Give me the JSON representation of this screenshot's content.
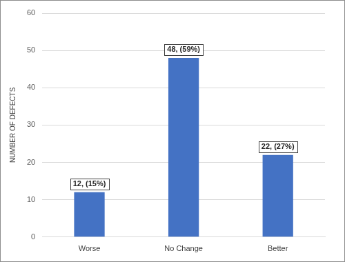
{
  "chart_data": {
    "type": "bar",
    "y_label": "NUMBER OF DEFECTS",
    "categories": [
      "Worse",
      "No Change",
      "Better"
    ],
    "values": [
      12,
      48,
      22
    ],
    "value_labels": [
      "12, (15%)",
      "48, (59%)",
      "22, (27%)"
    ],
    "data_labels": true,
    "color": "#4472c4",
    "ylim": [
      0,
      60
    ],
    "yticks": [
      0,
      10,
      20,
      30,
      40,
      50,
      60
    ],
    "grid": true
  }
}
